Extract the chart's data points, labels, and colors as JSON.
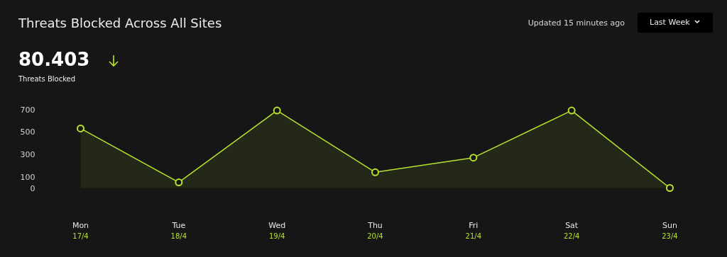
{
  "chart_data": {
    "type": "area",
    "title": "Threats Blocked Across All Sites",
    "annotations": [
      "Updated 15 minutes ago",
      "Last Week",
      "80.403",
      "Threats Blocked"
    ],
    "categories": [
      "Mon\n17/4",
      "Tue\n18/4",
      "Wed\n19/4",
      "Thu\n20/4",
      "Fri\n21/4",
      "Sat\n22/4",
      "Sun\n23/4"
    ],
    "series": [
      {
        "color": "#b5e32b",
        "values": [
          530,
          50,
          690,
          140,
          270,
          690,
          0
        ]
      }
    ],
    "ylim": [
      0,
      700
    ],
    "yticks": [
      0,
      100,
      300,
      500,
      700
    ],
    "grid": false,
    "marker": "circle",
    "line_style": "solid"
  }
}
